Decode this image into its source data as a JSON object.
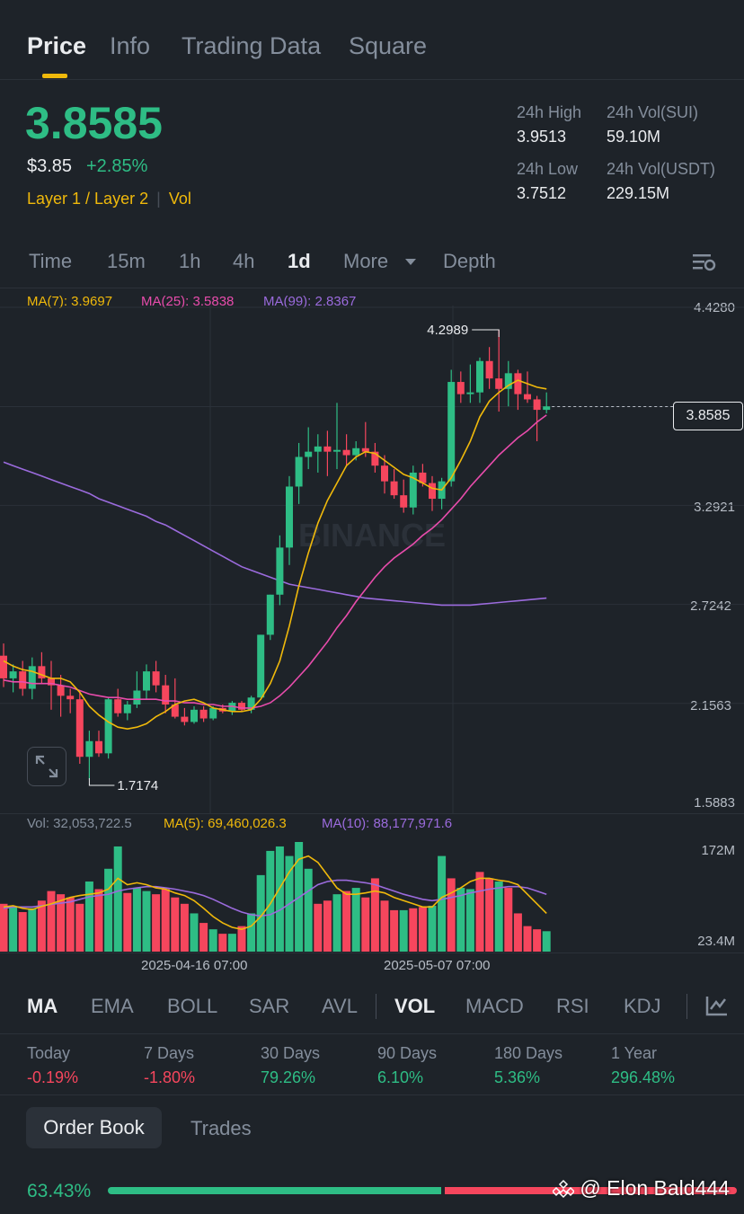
{
  "tabs": [
    {
      "label": "Price"
    },
    {
      "label": "Info"
    },
    {
      "label": "Trading Data"
    },
    {
      "label": "Square"
    }
  ],
  "ticker": {
    "last_price": "3.8585",
    "usd_price": "$3.85",
    "change_pct": "+2.85%",
    "tags": "Layer 1 / Layer 2",
    "tag_separator": "|",
    "vol_tag": "Vol"
  },
  "stats": {
    "high_label": "24h High",
    "high_value": "3.9513",
    "low_label": "24h Low",
    "low_value": "3.7512",
    "vol_sui_label": "24h Vol(SUI)",
    "vol_sui_value": "59.10M",
    "vol_usdt_label": "24h Vol(USDT)",
    "vol_usdt_value": "229.15M"
  },
  "timeframes": [
    "Time",
    "15m",
    "1h",
    "4h",
    "1d",
    "More",
    "Depth"
  ],
  "active_timeframe": "1d",
  "ma_legend": {
    "ma7": "MA(7): 3.9697",
    "ma25": "MA(25): 3.5838",
    "ma99": "MA(99): 2.8367"
  },
  "price_axis": [
    "4.4280",
    "3.8585",
    "3.2921",
    "2.7242",
    "2.1563",
    "1.5883"
  ],
  "current_price_tag": "3.8585",
  "high_marker": "4.2989",
  "low_marker": "1.7174",
  "watermark": "BINANCE",
  "volume_legend": {
    "vol": "Vol: 32,053,722.5",
    "ma5": "MA(5): 69,460,026.3",
    "ma10": "MA(10): 88,177,971.6"
  },
  "volume_axis": [
    "172M",
    "23.4M"
  ],
  "date_labels": [
    "2025-04-16 07:00",
    "2025-05-07 07:00"
  ],
  "indicators": [
    "MA",
    "EMA",
    "BOLL",
    "SAR",
    "AVL",
    "VOL",
    "MACD",
    "RSI",
    "KDJ"
  ],
  "performance": [
    {
      "label": "Today",
      "value": "-0.19%"
    },
    {
      "label": "7 Days",
      "value": "-1.80%"
    },
    {
      "label": "30 Days",
      "value": "79.26%"
    },
    {
      "label": "90 Days",
      "value": "6.10%"
    },
    {
      "label": "180 Days",
      "value": "5.36%"
    },
    {
      "label": "1 Year",
      "value": "296.48%"
    }
  ],
  "bottom_tabs": {
    "order_book": "Order Book",
    "trades": "Trades"
  },
  "order_book_ratio": {
    "buy_pct": "63.43%",
    "buy_fraction": 0.6343
  },
  "overlay_watermark": "@ Elon Bald444",
  "colors": {
    "up": "#2EBD85",
    "down": "#F6465D",
    "accent": "#F0B90B",
    "ma7": "#F0B90B",
    "ma25": "#E84CAC",
    "ma99": "#9B6BDD",
    "bg": "#1E2329"
  },
  "chart_data": {
    "type": "candlestick",
    "interval": "1d",
    "ylim": [
      1.5883,
      4.428
    ],
    "candles": [
      {
        "o": 2.43,
        "h": 2.5,
        "l": 2.25,
        "c": 2.3
      },
      {
        "o": 2.3,
        "h": 2.38,
        "l": 2.22,
        "c": 2.34
      },
      {
        "o": 2.34,
        "h": 2.4,
        "l": 2.2,
        "c": 2.24
      },
      {
        "o": 2.24,
        "h": 2.42,
        "l": 2.18,
        "c": 2.37
      },
      {
        "o": 2.37,
        "h": 2.45,
        "l": 2.27,
        "c": 2.3
      },
      {
        "o": 2.3,
        "h": 2.4,
        "l": 2.12,
        "c": 2.26
      },
      {
        "o": 2.26,
        "h": 2.32,
        "l": 2.08,
        "c": 2.2
      },
      {
        "o": 2.2,
        "h": 2.24,
        "l": 2.1,
        "c": 2.18
      },
      {
        "o": 2.18,
        "h": 2.22,
        "l": 1.81,
        "c": 1.85
      },
      {
        "o": 1.85,
        "h": 2.0,
        "l": 1.72,
        "c": 1.94
      },
      {
        "o": 1.94,
        "h": 2.0,
        "l": 1.85,
        "c": 1.87
      },
      {
        "o": 1.87,
        "h": 2.19,
        "l": 1.84,
        "c": 2.18
      },
      {
        "o": 2.18,
        "h": 2.24,
        "l": 2.08,
        "c": 2.1
      },
      {
        "o": 2.1,
        "h": 2.17,
        "l": 2.06,
        "c": 2.15
      },
      {
        "o": 2.15,
        "h": 2.34,
        "l": 2.13,
        "c": 2.23
      },
      {
        "o": 2.23,
        "h": 2.38,
        "l": 2.18,
        "c": 2.34
      },
      {
        "o": 2.34,
        "h": 2.4,
        "l": 2.22,
        "c": 2.26
      },
      {
        "o": 2.26,
        "h": 2.32,
        "l": 2.1,
        "c": 2.15
      },
      {
        "o": 2.15,
        "h": 2.3,
        "l": 2.07,
        "c": 2.08
      },
      {
        "o": 2.08,
        "h": 2.13,
        "l": 2.03,
        "c": 2.05
      },
      {
        "o": 2.05,
        "h": 2.14,
        "l": 2.04,
        "c": 2.12
      },
      {
        "o": 2.12,
        "h": 2.14,
        "l": 2.05,
        "c": 2.07
      },
      {
        "o": 2.07,
        "h": 2.14,
        "l": 2.06,
        "c": 2.13
      },
      {
        "o": 2.13,
        "h": 2.15,
        "l": 2.1,
        "c": 2.11
      },
      {
        "o": 2.11,
        "h": 2.17,
        "l": 2.09,
        "c": 2.16
      },
      {
        "o": 2.16,
        "h": 2.17,
        "l": 2.11,
        "c": 2.12
      },
      {
        "o": 2.12,
        "h": 2.2,
        "l": 2.1,
        "c": 2.19
      },
      {
        "o": 2.19,
        "h": 2.55,
        "l": 2.19,
        "c": 2.55
      },
      {
        "o": 2.55,
        "h": 2.78,
        "l": 2.52,
        "c": 2.78
      },
      {
        "o": 2.78,
        "h": 3.12,
        "l": 2.72,
        "c": 3.05
      },
      {
        "o": 3.05,
        "h": 3.46,
        "l": 2.95,
        "c": 3.4
      },
      {
        "o": 3.4,
        "h": 3.65,
        "l": 3.3,
        "c": 3.57
      },
      {
        "o": 3.57,
        "h": 3.74,
        "l": 3.5,
        "c": 3.6
      },
      {
        "o": 3.6,
        "h": 3.7,
        "l": 3.48,
        "c": 3.63
      },
      {
        "o": 3.63,
        "h": 3.72,
        "l": 3.46,
        "c": 3.6
      },
      {
        "o": 3.6,
        "h": 3.88,
        "l": 3.5,
        "c": 3.61
      },
      {
        "o": 3.61,
        "h": 3.7,
        "l": 3.52,
        "c": 3.58
      },
      {
        "o": 3.58,
        "h": 3.66,
        "l": 3.55,
        "c": 3.62
      },
      {
        "o": 3.62,
        "h": 3.77,
        "l": 3.57,
        "c": 3.6
      },
      {
        "o": 3.6,
        "h": 3.65,
        "l": 3.48,
        "c": 3.52
      },
      {
        "o": 3.52,
        "h": 3.58,
        "l": 3.36,
        "c": 3.43
      },
      {
        "o": 3.43,
        "h": 3.5,
        "l": 3.33,
        "c": 3.35
      },
      {
        "o": 3.35,
        "h": 3.44,
        "l": 3.25,
        "c": 3.28
      },
      {
        "o": 3.28,
        "h": 3.52,
        "l": 3.24,
        "c": 3.48
      },
      {
        "o": 3.48,
        "h": 3.53,
        "l": 3.4,
        "c": 3.42
      },
      {
        "o": 3.42,
        "h": 3.46,
        "l": 3.26,
        "c": 3.33
      },
      {
        "o": 3.33,
        "h": 3.45,
        "l": 3.27,
        "c": 3.43
      },
      {
        "o": 3.43,
        "h": 4.07,
        "l": 3.4,
        "c": 4.0
      },
      {
        "o": 4.0,
        "h": 4.06,
        "l": 3.88,
        "c": 3.93
      },
      {
        "o": 3.93,
        "h": 4.1,
        "l": 3.88,
        "c": 3.94
      },
      {
        "o": 3.94,
        "h": 4.14,
        "l": 3.88,
        "c": 4.12
      },
      {
        "o": 4.12,
        "h": 4.2,
        "l": 3.96,
        "c": 4.02
      },
      {
        "o": 4.02,
        "h": 4.3,
        "l": 3.83,
        "c": 3.96
      },
      {
        "o": 3.96,
        "h": 4.12,
        "l": 3.86,
        "c": 4.05
      },
      {
        "o": 4.05,
        "h": 4.07,
        "l": 3.84,
        "c": 3.93
      },
      {
        "o": 3.93,
        "h": 4.06,
        "l": 3.88,
        "c": 3.9
      },
      {
        "o": 3.9,
        "h": 3.92,
        "l": 3.66,
        "c": 3.84
      },
      {
        "o": 3.84,
        "h": 3.94,
        "l": 3.82,
        "c": 3.86
      }
    ],
    "ma7": [
      2.4,
      2.37,
      2.35,
      2.34,
      2.32,
      2.3,
      2.3,
      2.28,
      2.22,
      2.14,
      2.09,
      2.05,
      2.02,
      2.01,
      2.02,
      2.04,
      2.08,
      2.11,
      2.15,
      2.17,
      2.18,
      2.16,
      2.13,
      2.12,
      2.11,
      2.11,
      2.12,
      2.18,
      2.27,
      2.4,
      2.6,
      2.83,
      3.02,
      3.19,
      3.32,
      3.42,
      3.52,
      3.57,
      3.6,
      3.59,
      3.55,
      3.51,
      3.47,
      3.45,
      3.42,
      3.39,
      3.38,
      3.45,
      3.55,
      3.66,
      3.8,
      3.89,
      3.94,
      3.98,
      4.01,
      3.99,
      3.97,
      3.96
    ],
    "ma25": [
      2.29,
      2.28,
      2.28,
      2.27,
      2.27,
      2.27,
      2.26,
      2.25,
      2.23,
      2.21,
      2.2,
      2.19,
      2.19,
      2.18,
      2.18,
      2.18,
      2.18,
      2.17,
      2.17,
      2.16,
      2.16,
      2.15,
      2.15,
      2.14,
      2.14,
      2.13,
      2.13,
      2.14,
      2.16,
      2.2,
      2.25,
      2.31,
      2.37,
      2.44,
      2.51,
      2.59,
      2.66,
      2.74,
      2.81,
      2.88,
      2.94,
      2.99,
      3.03,
      3.07,
      3.12,
      3.16,
      3.21,
      3.27,
      3.33,
      3.4,
      3.46,
      3.52,
      3.58,
      3.63,
      3.68,
      3.72,
      3.77,
      3.81
    ],
    "ma99": [
      3.54,
      3.52,
      3.5,
      3.48,
      3.46,
      3.44,
      3.42,
      3.4,
      3.38,
      3.36,
      3.33,
      3.31,
      3.29,
      3.27,
      3.25,
      3.23,
      3.2,
      3.18,
      3.15,
      3.12,
      3.09,
      3.06,
      3.03,
      3.0,
      2.97,
      2.94,
      2.92,
      2.9,
      2.88,
      2.86,
      2.84,
      2.83,
      2.82,
      2.81,
      2.8,
      2.79,
      2.78,
      2.77,
      2.76,
      2.755,
      2.75,
      2.745,
      2.74,
      2.735,
      2.73,
      2.725,
      2.72,
      2.72,
      2.72,
      2.72,
      2.725,
      2.73,
      2.735,
      2.74,
      2.745,
      2.75,
      2.755,
      2.76
    ],
    "volume_ylim": [
      0,
      172
    ],
    "volume": [
      75,
      70,
      62,
      68,
      80,
      95,
      90,
      85,
      75,
      110,
      98,
      130,
      165,
      92,
      100,
      95,
      90,
      98,
      85,
      75,
      60,
      45,
      35,
      28,
      28,
      40,
      60,
      120,
      158,
      165,
      150,
      172,
      130,
      75,
      80,
      90,
      95,
      100,
      85,
      115,
      80,
      65,
      65,
      68,
      70,
      72,
      150,
      115,
      100,
      98,
      125,
      115,
      110,
      100,
      60,
      40,
      35,
      32
    ],
    "volume_ma5": [
      70,
      72,
      68,
      66,
      71,
      75,
      80,
      85,
      88,
      90,
      92,
      98,
      115,
      105,
      108,
      105,
      100,
      98,
      92,
      88,
      80,
      68,
      55,
      45,
      38,
      35,
      40,
      55,
      75,
      100,
      125,
      145,
      150,
      140,
      120,
      100,
      90,
      90,
      92,
      95,
      92,
      85,
      80,
      75,
      70,
      70,
      85,
      92,
      100,
      110,
      115,
      115,
      112,
      110,
      105,
      90,
      75,
      60
    ],
    "volume_ma10": [
      68,
      70,
      70,
      70,
      72,
      74,
      76,
      78,
      82,
      86,
      88,
      90,
      95,
      98,
      100,
      102,
      102,
      100,
      98,
      95,
      92,
      88,
      82,
      75,
      68,
      62,
      58,
      56,
      58,
      65,
      75,
      85,
      95,
      105,
      110,
      112,
      112,
      110,
      108,
      105,
      100,
      95,
      90,
      86,
      82,
      80,
      82,
      85,
      88,
      92,
      95,
      98,
      100,
      102,
      102,
      100,
      95,
      90
    ],
    "volume_up": [
      false,
      true,
      false,
      true,
      false,
      false,
      false,
      false,
      false,
      true,
      false,
      true,
      true,
      false,
      true,
      true,
      false,
      false,
      false,
      false,
      true,
      false,
      true,
      false,
      true,
      false,
      true,
      true,
      true,
      true,
      true,
      true,
      true,
      false,
      false,
      true,
      false,
      true,
      false,
      false,
      false,
      false,
      true,
      false,
      false,
      true,
      true,
      false,
      true,
      true,
      false,
      false,
      true,
      false,
      false,
      false,
      false,
      true
    ]
  }
}
